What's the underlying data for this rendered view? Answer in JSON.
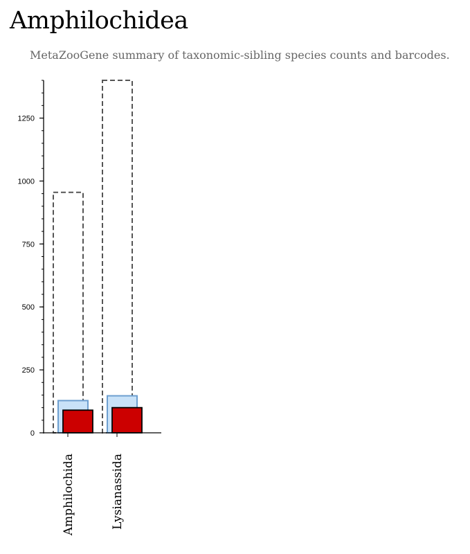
{
  "page": {
    "title": "Amphilochidea",
    "subtitle": "MetaZooGene summary of taxonomic-sibling species counts and barcodes."
  },
  "colors": {
    "outline_series": "#555555",
    "mid_series_fill": "#c9e2f8",
    "mid_series_stroke": "#6d9fd0",
    "front_series_fill": "#cc0000",
    "front_series_stroke": "#000000",
    "axis": "#000000"
  },
  "chart_data": {
    "type": "bar",
    "title": "",
    "xlabel": "",
    "ylabel": "",
    "categories": [
      "Amphilochida",
      "Lysianassida"
    ],
    "series": [
      {
        "values": [
          955,
          1400
        ]
      },
      {
        "values": [
          128,
          147
        ]
      },
      {
        "values": [
          90,
          100
        ]
      }
    ],
    "ylim": [
      0,
      1400
    ],
    "yticks": [
      0,
      250,
      500,
      750,
      1000,
      1250
    ],
    "grid": false
  }
}
